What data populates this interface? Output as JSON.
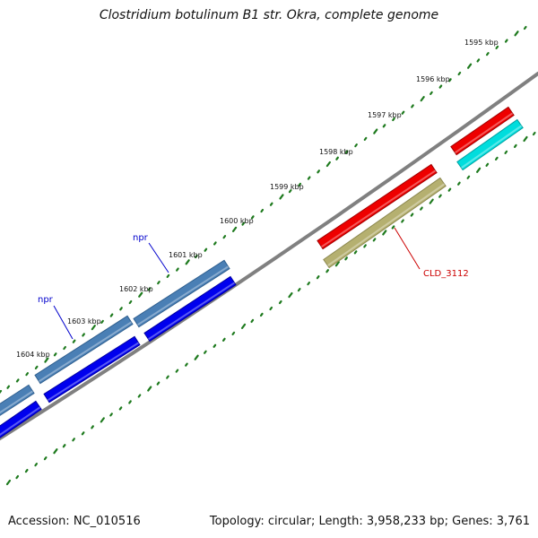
{
  "header": {
    "title": "Clostridium botulinum B1 str. Okra, complete genome"
  },
  "footer": {
    "accession": "Accession: NC_010516",
    "summary": "Topology: circular; Length: 3,958,233 bp; Genes: 3,761"
  },
  "colors": {
    "backbone": "#808080",
    "tick": "#1e7a1e",
    "label_blue": "#0000cc",
    "label_red": "#cc0000",
    "steelblue": "#4a7fb5",
    "blue": "#0000ee",
    "red": "#ee0000",
    "cyan": "#00dddd",
    "olive": "#b5b070"
  },
  "ticks": [
    {
      "label": "1595 kbp"
    },
    {
      "label": "1596 kbp"
    },
    {
      "label": "1597 kbp"
    },
    {
      "label": "1598 kbp"
    },
    {
      "label": "1599 kbp"
    },
    {
      "label": "1600 kbp"
    },
    {
      "label": "1601 kbp"
    },
    {
      "label": "1602 kbp"
    },
    {
      "label": "1603 kbp"
    },
    {
      "label": "1604 kbp"
    }
  ],
  "features": [
    {
      "name": "npr",
      "color_key": "steelblue",
      "lane": "outer-1"
    },
    {
      "name": "npr",
      "color_key": "steelblue",
      "lane": "outer-1"
    },
    {
      "name": "",
      "color_key": "steelblue",
      "lane": "outer-1"
    },
    {
      "name": "",
      "color_key": "blue",
      "lane": "outer-2"
    },
    {
      "name": "",
      "color_key": "blue",
      "lane": "outer-2"
    },
    {
      "name": "",
      "color_key": "blue",
      "lane": "outer-2"
    },
    {
      "name": "",
      "color_key": "red",
      "lane": "outer-1"
    },
    {
      "name": "",
      "color_key": "red",
      "lane": "outer-1"
    },
    {
      "name": "",
      "color_key": "cyan",
      "lane": "outer-2"
    },
    {
      "name": "CLD_3112",
      "color_key": "olive",
      "lane": "outer-2"
    }
  ]
}
